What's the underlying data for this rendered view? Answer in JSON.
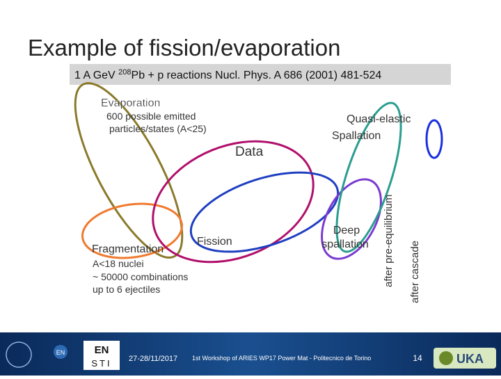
{
  "title": "Example of fission/evaporation",
  "subtitle": {
    "before": "1 A GeV ",
    "superscript": "208",
    "after": "Pb + p reactions Nucl. Phys. A 686 (2001) 481-524"
  },
  "labels": {
    "evaporation": "Evaporation",
    "evaporation_note": [
      "600 possible emitted",
      "particles/states (A<25)"
    ],
    "data": "Data",
    "quasi_elastic": "Quasi-elastic",
    "spallation": "Spallation",
    "fragmentation": "Fragmentation",
    "fission": "Fission",
    "fragmentation_note": [
      "A<18 nuclei",
      "~ 50000 combinations",
      "up to 6 ejectiles"
    ],
    "deep_spallation": [
      "Deep",
      "spallation"
    ],
    "after_pre_equilibrium": "after pre-equilibrium",
    "after_cascade": "after cascade"
  },
  "footer": {
    "date": "27-28/11/2017",
    "event": "1st Workshop of ARIES WP17 Power Mat - Politecnico de Torino",
    "page": "14",
    "logos": {
      "en": "EN",
      "en_sti": [
        "EN",
        "STI"
      ],
      "fluka": "UKA"
    }
  }
}
